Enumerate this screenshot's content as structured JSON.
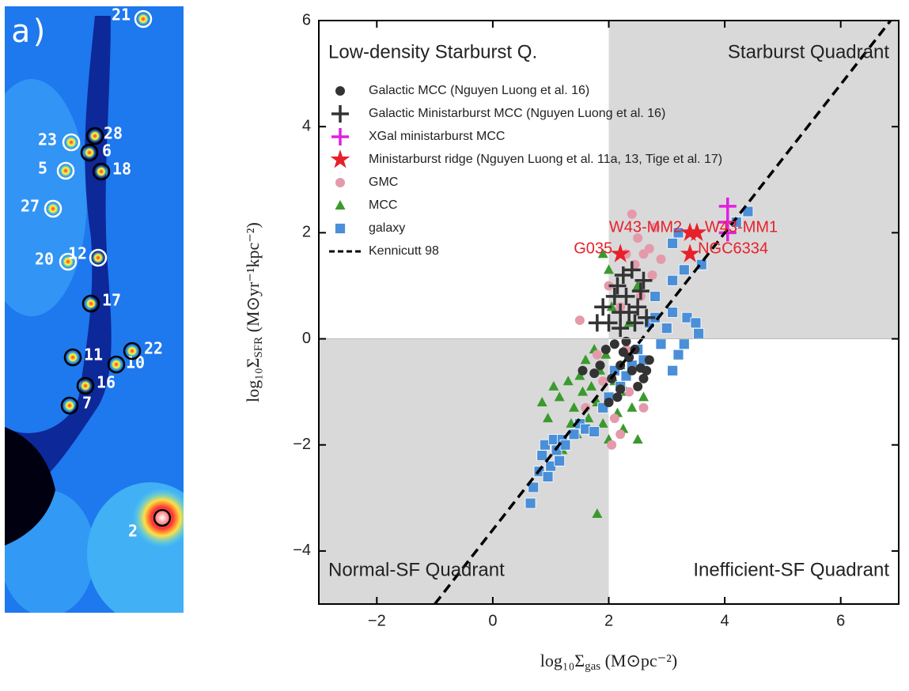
{
  "image_panel": {
    "label": "a)",
    "sources": [
      "21",
      "23",
      "28",
      "6",
      "5",
      "18",
      "27",
      "20",
      "12",
      "17",
      "11",
      "10",
      "22",
      "16",
      "7",
      "2"
    ]
  },
  "chart_data": {
    "type": "scatter",
    "x_label": {
      "main": "log₁₀Σ",
      "sub": "gas",
      "rest": " (M⊙pc⁻²)"
    },
    "y_label": {
      "main": "log₁₀Σ",
      "sub": "SFR",
      "rest": " (M⊙yr⁻¹kpc⁻²)"
    },
    "xlim": [
      -3,
      7
    ],
    "ylim": [
      -5,
      6
    ],
    "xticks": [
      {
        "value": -2,
        "label": "−2"
      },
      0,
      2,
      4,
      6
    ],
    "yticks": [
      {
        "value": -4,
        "label": "−4"
      },
      {
        "value": -2,
        "label": "−2"
      },
      0,
      2,
      4,
      6
    ],
    "shaded_regions": [
      {
        "xlim": [
          -3,
          2
        ],
        "ylim": [
          -5,
          0
        ]
      },
      {
        "xlim": [
          2,
          7
        ],
        "ylim": [
          0,
          6
        ]
      }
    ],
    "shade_color": "#d9d9d9",
    "quadrant_labels": [
      "Low-density Starburst Q.",
      "Starburst Quadrant",
      "Normal-SF Quadrant",
      "Inefficient-SF Quadrant"
    ],
    "legend": "upper left",
    "series": [
      {
        "name": "Galactic MCC (Nguyen Luong et al. 16)",
        "marker": "o",
        "color": "#333333",
        "x": [
          1.55,
          1.75,
          1.95,
          2.05,
          2.1,
          2.15,
          2.2,
          2.25,
          2.3,
          2.35,
          2.4,
          2.45,
          2.5,
          2.55,
          2.6,
          2.65,
          2.7,
          2.2,
          1.85,
          2.0
        ],
        "y": [
          -0.6,
          -0.65,
          -0.2,
          -0.75,
          -0.1,
          -1.1,
          -0.5,
          -0.25,
          -0.05,
          -0.35,
          -0.6,
          -0.2,
          -0.9,
          -0.55,
          -0.75,
          -0.6,
          -0.4,
          -0.95,
          -0.5,
          -1.2
        ]
      },
      {
        "name": "Galactic Ministarburst MCC (Nguyen Luong et al. 16)",
        "marker": "+",
        "color": "#333333",
        "x": [
          1.8,
          1.9,
          2.0,
          2.1,
          2.15,
          2.2,
          2.25,
          2.3,
          2.35,
          2.4,
          2.45,
          2.5,
          2.55,
          2.6,
          2.65,
          2.2
        ],
        "y": [
          0.3,
          0.6,
          0.3,
          0.8,
          1.0,
          0.2,
          1.2,
          0.8,
          0.5,
          1.3,
          0.3,
          0.6,
          0.9,
          1.1,
          0.4,
          0.5
        ]
      },
      {
        "name": "XGal ministarburst MCC",
        "marker": "+",
        "color": "#e020e0",
        "x": [
          4.05,
          4.05,
          4.05
        ],
        "y": [
          2.5,
          2.2,
          2.0
        ]
      },
      {
        "name": "Ministarburst ridge (Nguyen Luong et al. 11a, 13, Tige et al. 17)",
        "marker": "*",
        "color": "#e8202a",
        "x": [
          2.2,
          3.4,
          3.52,
          3.4
        ],
        "y": [
          1.6,
          2.0,
          2.0,
          1.6
        ],
        "labels": [
          "G035",
          "W43-MM2",
          "W43-MM1",
          "NGC6334"
        ]
      },
      {
        "name": "GMC",
        "marker": "o",
        "color": "#e49aab",
        "x": [
          1.5,
          1.8,
          1.9,
          2.0,
          2.1,
          2.2,
          2.3,
          2.4,
          2.45,
          2.5,
          2.55,
          2.6,
          2.7,
          2.75,
          2.8,
          2.9,
          2.35,
          2.05,
          2.6,
          2.2,
          1.6,
          2.3
        ],
        "y": [
          0.35,
          -0.3,
          -0.8,
          1.0,
          -1.5,
          0.6,
          -0.2,
          2.35,
          1.4,
          1.9,
          0.8,
          1.6,
          1.7,
          1.2,
          2.1,
          1.5,
          -1.0,
          -2.0,
          -1.3,
          -1.8,
          -1.3,
          1.6
        ]
      },
      {
        "name": "MCC",
        "marker": "^",
        "color": "#3a9a2e",
        "x": [
          0.85,
          0.95,
          1.05,
          1.15,
          1.2,
          1.3,
          1.4,
          1.45,
          1.5,
          1.55,
          1.6,
          1.65,
          1.7,
          1.75,
          1.8,
          1.85,
          1.9,
          1.95,
          2.0,
          2.05,
          2.1,
          2.15,
          2.2,
          2.25,
          2.3,
          2.4,
          2.5,
          2.6,
          1.9,
          2.0,
          2.5,
          1.8,
          1.35,
          2.35
        ],
        "y": [
          -1.2,
          -1.5,
          -0.9,
          -1.1,
          -2.1,
          -0.8,
          -1.3,
          -1.8,
          -0.7,
          -1.0,
          -0.4,
          -1.5,
          -0.9,
          -0.2,
          -1.2,
          -0.6,
          -1.6,
          -0.3,
          -1.9,
          0.6,
          -0.8,
          -1.4,
          -0.5,
          -1.7,
          -1.0,
          -1.3,
          -1.9,
          -1.1,
          1.6,
          1.3,
          1.0,
          -3.3,
          -1.6,
          0.3
        ]
      },
      {
        "name": "galaxy",
        "marker": "s",
        "color": "#4a8fd8",
        "x": [
          0.65,
          0.7,
          0.8,
          0.85,
          0.9,
          0.95,
          1.0,
          1.05,
          1.1,
          1.15,
          1.2,
          1.25,
          1.4,
          1.5,
          1.6,
          1.75,
          1.9,
          2.0,
          2.1,
          2.2,
          2.3,
          2.4,
          2.5,
          2.6,
          2.7,
          2.8,
          2.9,
          3.0,
          3.1,
          3.1,
          3.2,
          3.3,
          3.35,
          3.5,
          3.6,
          3.1,
          3.3,
          3.1,
          3.2,
          4.4,
          4.2,
          3.55,
          2.8
        ],
        "y": [
          -3.1,
          -2.8,
          -2.5,
          -2.2,
          -2.0,
          -2.6,
          -2.4,
          -1.9,
          -2.1,
          -2.3,
          -1.9,
          -2.0,
          -1.8,
          -1.6,
          -1.7,
          -1.75,
          -1.3,
          -1.1,
          -0.6,
          -0.9,
          -0.7,
          -0.5,
          -0.2,
          -0.4,
          0.3,
          0.8,
          -0.1,
          0.2,
          0.5,
          -0.6,
          -0.3,
          -0.1,
          0.4,
          0.3,
          1.4,
          1.1,
          1.3,
          1.8,
          2.0,
          2.4,
          2.2,
          0.1,
          0.4
        ]
      }
    ],
    "line": {
      "name": "Kennicutt 98",
      "color": "#000000",
      "x": [
        -1,
        6.86
      ],
      "y": [
        -5,
        6
      ]
    }
  }
}
